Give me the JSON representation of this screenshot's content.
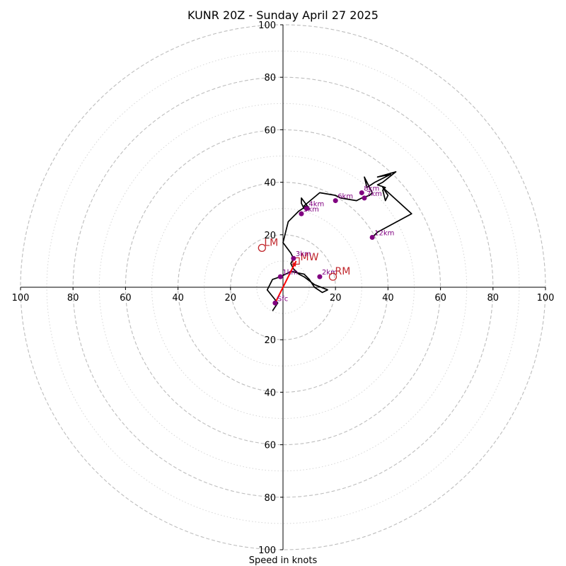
{
  "chart_data": {
    "type": "scatter",
    "title": "KUNR 20Z - Sunday April 27 2025",
    "xlabel": "Speed in knots",
    "rings": [
      20,
      40,
      60,
      80,
      100
    ],
    "minor_rings": [
      10,
      30,
      50,
      70,
      90
    ],
    "lim": [
      -100,
      100
    ],
    "x_tick_labels": [
      "100",
      "80",
      "60",
      "40",
      "20",
      "20",
      "40",
      "60",
      "80",
      "100"
    ],
    "y_tick_labels": [
      "100",
      "80",
      "60",
      "40",
      "20",
      "20",
      "40",
      "60",
      "80",
      "100"
    ],
    "hodograph_trace": [
      [
        -4,
        -9
      ],
      [
        -2,
        -6
      ],
      [
        -6,
        -1
      ],
      [
        -4,
        3
      ],
      [
        -1,
        4
      ],
      [
        3,
        6
      ],
      [
        8,
        5
      ],
      [
        10,
        3
      ],
      [
        12,
        0
      ],
      [
        15,
        -2
      ],
      [
        17,
        -1
      ],
      [
        12,
        1
      ],
      [
        8,
        4
      ],
      [
        6,
        5
      ],
      [
        4,
        7
      ],
      [
        3,
        9
      ],
      [
        4,
        11
      ],
      [
        3,
        13
      ],
      [
        0,
        17
      ],
      [
        1,
        21
      ],
      [
        2,
        25
      ],
      [
        6,
        29
      ],
      [
        9,
        31
      ],
      [
        8,
        30
      ],
      [
        7,
        32
      ],
      [
        7,
        34
      ],
      [
        10,
        30
      ],
      [
        8,
        31
      ],
      [
        14,
        36
      ],
      [
        20,
        35
      ],
      [
        22,
        34
      ],
      [
        28,
        33
      ],
      [
        30,
        34
      ],
      [
        33,
        35
      ],
      [
        34,
        36
      ],
      [
        31,
        42
      ],
      [
        32,
        38
      ],
      [
        35,
        40
      ],
      [
        41,
        43
      ],
      [
        36,
        42
      ],
      [
        43,
        44
      ],
      [
        38,
        40
      ],
      [
        36,
        39
      ],
      [
        39,
        38
      ],
      [
        38,
        37
      ],
      [
        39,
        33
      ],
      [
        40,
        35
      ],
      [
        38,
        38
      ],
      [
        49,
        28
      ],
      [
        36,
        21
      ],
      [
        34,
        19
      ]
    ],
    "height_markers": [
      {
        "label": "Sfc",
        "u": -3,
        "v": -6
      },
      {
        "label": "1km",
        "u": -1,
        "v": 4
      },
      {
        "label": "2km",
        "u": 14,
        "v": 4
      },
      {
        "label": "3km",
        "u": 4,
        "v": 11
      },
      {
        "label": "4km",
        "u": 9,
        "v": 30
      },
      {
        "label": "5km",
        "u": 7,
        "v": 28
      },
      {
        "label": "6km",
        "u": 20,
        "v": 33
      },
      {
        "label": "7km",
        "u": 31,
        "v": 34
      },
      {
        "label": "8km",
        "u": 30,
        "v": 36
      },
      {
        "label": "12km",
        "u": 34,
        "v": 19
      }
    ],
    "storm_motions": [
      {
        "label": "LM",
        "u": -8,
        "v": 15
      },
      {
        "label": "RM",
        "u": 19,
        "v": 4
      }
    ],
    "mean_wind": {
      "label": "MW",
      "u": 5,
      "v": 10
    },
    "colors": {
      "trace": "#000000",
      "marker": "#800080",
      "motion": "#c0262b",
      "arrow": "#ff0000",
      "grid": "#bdbdbd"
    }
  }
}
